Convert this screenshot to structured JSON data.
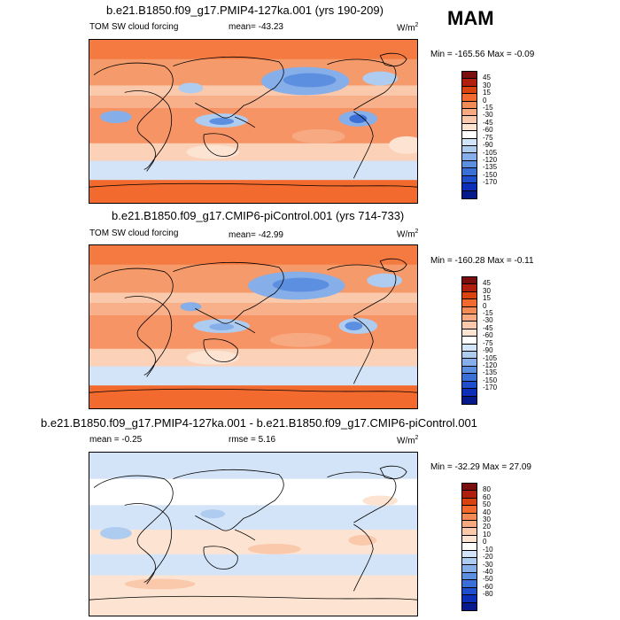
{
  "season": "MAM",
  "panels": [
    {
      "title": "b.e21.B1850.f09_g17.PMIP4-127ka.001 (yrs 190-209)",
      "left_label": "TOM SW cloud forcing",
      "center_label": "mean= -43.23",
      "units_base": "W/m",
      "units_exp": "2",
      "minmax": "Min = -165.56 Max =  -0.09",
      "colorbar_labels": [
        "45",
        "30",
        "15",
        "0",
        "-15",
        "-30",
        "-45",
        "-60",
        "-75",
        "-90",
        "-105",
        "-120",
        "-135",
        "-150",
        "-170"
      ],
      "colors": [
        "#7a0d0d",
        "#b01e0f",
        "#d9430f",
        "#f26a2e",
        "#f48a55",
        "#f7aa82",
        "#fac8ab",
        "#fde4d2",
        "#ffffff",
        "#d4e4f8",
        "#aecbf0",
        "#86aee8",
        "#5d8fe0",
        "#3a6fd6",
        "#1f4fcc",
        "#0d2fb8",
        "#071a8c"
      ]
    },
    {
      "title": "b.e21.B1850.f09_g17.CMIP6-piControl.001 (yrs 714-733)",
      "left_label": "TOM SW cloud forcing",
      "center_label": "mean= -42.99",
      "units_base": "W/m",
      "units_exp": "2",
      "minmax": "Min = -160.28 Max =  -0.11",
      "colorbar_labels": [
        "45",
        "30",
        "15",
        "0",
        "-15",
        "-30",
        "-45",
        "-60",
        "-75",
        "-90",
        "-105",
        "-120",
        "-135",
        "-150",
        "-170"
      ],
      "colors": [
        "#7a0d0d",
        "#b01e0f",
        "#d9430f",
        "#f26a2e",
        "#f48a55",
        "#f7aa82",
        "#fac8ab",
        "#fde4d2",
        "#ffffff",
        "#d4e4f8",
        "#aecbf0",
        "#86aee8",
        "#5d8fe0",
        "#3a6fd6",
        "#1f4fcc",
        "#0d2fb8",
        "#071a8c"
      ]
    },
    {
      "title": "b.e21.B1850.f09_g17.PMIP4-127ka.001 - b.e21.B1850.f09_g17.CMIP6-piControl.001",
      "left_label": "mean =  -0.25",
      "center_label": "rmse =   5.16",
      "units_base": "W/m",
      "units_exp": "2",
      "minmax": "Min = -32.29 Max =  27.09",
      "colorbar_labels": [
        "80",
        "60",
        "50",
        "40",
        "30",
        "20",
        "10",
        "0",
        "-10",
        "-20",
        "-30",
        "-40",
        "-50",
        "-60",
        "-80"
      ],
      "colors": [
        "#7a0d0d",
        "#b01e0f",
        "#d9430f",
        "#f26a2e",
        "#f48a55",
        "#f7aa82",
        "#fac8ab",
        "#fde4d2",
        "#ffffff",
        "#d4e4f8",
        "#aecbf0",
        "#86aee8",
        "#5d8fe0",
        "#3a6fd6",
        "#1f4fcc",
        "#0d2fb8",
        "#071a8c"
      ]
    }
  ]
}
